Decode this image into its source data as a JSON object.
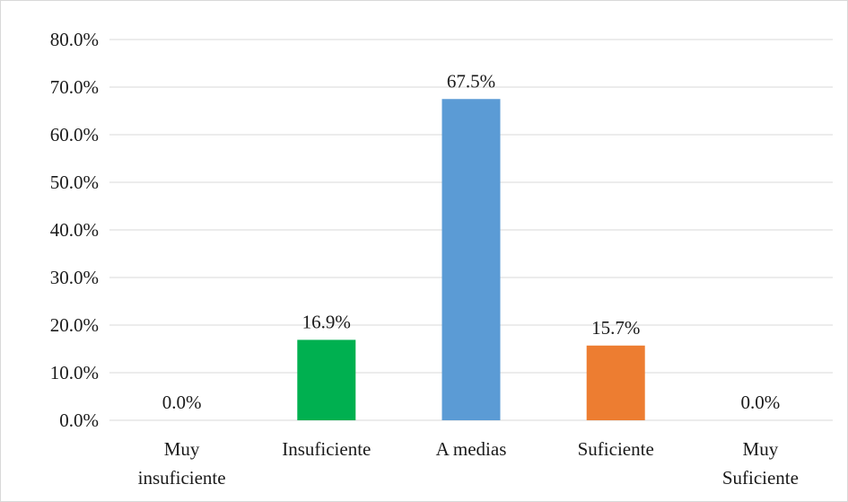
{
  "chart_data": {
    "type": "bar",
    "categories": [
      [
        "Muy",
        "insuficiente"
      ],
      [
        "Insuficiente"
      ],
      [
        "A medias"
      ],
      [
        "Suficiente"
      ],
      [
        "Muy",
        "Suficiente"
      ]
    ],
    "values": [
      0.0,
      16.9,
      67.5,
      15.7,
      0.0
    ],
    "data_labels": [
      "0.0%",
      "16.9%",
      "67.5%",
      "15.7%",
      "0.0%"
    ],
    "bar_colors": [
      "#00b050",
      "#00b050",
      "#5b9bd5",
      "#ed7d31",
      "#ed7d31"
    ],
    "yticks": [
      "0.0%",
      "10.0%",
      "20.0%",
      "30.0%",
      "40.0%",
      "50.0%",
      "60.0%",
      "70.0%",
      "80.0%"
    ],
    "ylim": [
      0,
      80
    ],
    "grid": true,
    "title": "",
    "xlabel": "",
    "ylabel": ""
  },
  "colors": {
    "gridline": "#d9d9d9",
    "text": "#1a1a1a",
    "frame": "#d9d9d9"
  }
}
